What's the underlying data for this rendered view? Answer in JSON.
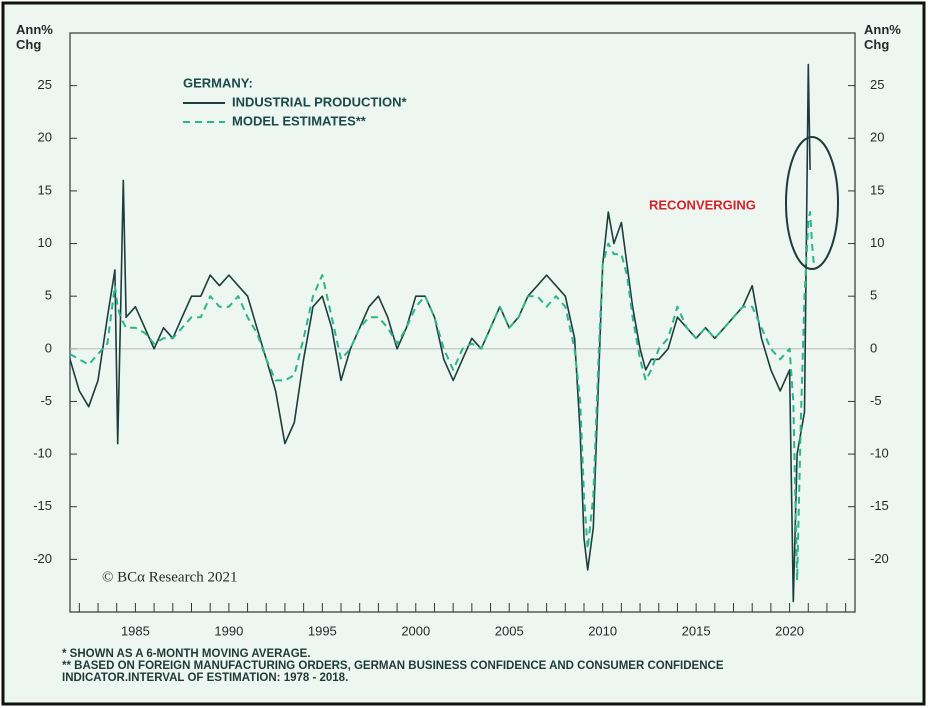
{
  "chart_data": {
    "type": "line",
    "ylabel": "Ann% Chg",
    "legend_title": "GERMANY:",
    "annotation": "RECONVERGING",
    "source": "© BCα Research 2021",
    "footnotes": [
      "* SHOWN AS A 6-MONTH MOVING AVERAGE.",
      "** BASED ON FOREIGN MANUFACTURING ORDERS, GERMAN BUSINESS CONFIDENCE AND CONSUMER CONFIDENCE INDICATOR.INTERVAL OF ESTIMATION: 1978 - 2018."
    ],
    "xlim": [
      1981.5,
      2023.5
    ],
    "ylim": [
      -25,
      30
    ],
    "xticks": [
      1985,
      1990,
      1995,
      2000,
      2005,
      2010,
      2015,
      2020
    ],
    "xminorticks": [
      1982,
      1983,
      1984,
      1985,
      1986,
      1987,
      1988,
      1989,
      1990,
      1991,
      1992,
      1993,
      1994,
      1995,
      1996,
      1997,
      1998,
      1999,
      2000,
      2001,
      2002,
      2003,
      2004,
      2005,
      2006,
      2007,
      2008,
      2009,
      2010,
      2011,
      2012,
      2013,
      2014,
      2015,
      2016,
      2017,
      2018,
      2019,
      2020,
      2021,
      2022,
      2023
    ],
    "yticks": [
      -20,
      -15,
      -10,
      -5,
      0,
      5,
      10,
      15,
      20,
      25
    ],
    "x": [
      1981.5,
      1982.0,
      1982.5,
      1983.0,
      1983.5,
      1983.9,
      1984.05,
      1984.2,
      1984.35,
      1984.5,
      1985.0,
      1985.5,
      1986.0,
      1986.5,
      1987.0,
      1987.5,
      1988.0,
      1988.5,
      1989.0,
      1989.5,
      1990.0,
      1990.5,
      1991.0,
      1991.5,
      1992.0,
      1992.5,
      1993.0,
      1993.5,
      1994.0,
      1994.5,
      1995.0,
      1995.5,
      1996.0,
      1996.5,
      1997.0,
      1997.5,
      1998.0,
      1998.5,
      1999.0,
      1999.5,
      2000.0,
      2000.5,
      2001.0,
      2001.5,
      2002.0,
      2002.5,
      2003.0,
      2003.5,
      2004.0,
      2004.5,
      2005.0,
      2005.5,
      2006.0,
      2006.5,
      2007.0,
      2007.5,
      2008.0,
      2008.5,
      2008.8,
      2009.0,
      2009.2,
      2009.5,
      2009.8,
      2010.0,
      2010.3,
      2010.6,
      2011.0,
      2011.3,
      2011.6,
      2012.0,
      2012.3,
      2012.6,
      2013.0,
      2013.5,
      2014.0,
      2014.5,
      2015.0,
      2015.5,
      2016.0,
      2016.5,
      2017.0,
      2017.5,
      2018.0,
      2018.5,
      2019.0,
      2019.5,
      2020.0,
      2020.2,
      2020.4,
      2020.6,
      2020.8,
      2021.0,
      2021.1,
      2021.2,
      2021.3
    ],
    "series": [
      {
        "name": "INDUSTRIAL PRODUCTION*",
        "color": "#1d3d3a",
        "dash": false,
        "values": [
          -1,
          -4,
          -5.5,
          -3,
          3,
          7.5,
          -9,
          3,
          16,
          3,
          4,
          2,
          0,
          2,
          1,
          3,
          5,
          5,
          7,
          6,
          7,
          6,
          5,
          2,
          -1,
          -4,
          -9,
          -7,
          -1,
          4,
          5,
          2,
          -3,
          0,
          2,
          4,
          5,
          3,
          0,
          2,
          5,
          5,
          3,
          -1,
          -3,
          -1,
          1,
          0,
          2,
          4,
          2,
          3,
          5,
          6,
          7,
          6,
          5,
          1,
          -8,
          -18,
          -21,
          -17,
          -2,
          8,
          13,
          10,
          12,
          8,
          4,
          0,
          -2,
          -1,
          -1,
          0,
          3,
          2,
          1,
          2,
          1,
          2,
          3,
          4,
          6,
          1,
          -2,
          -4,
          -2,
          -24,
          -10,
          -8,
          -6,
          27,
          17,
          null,
          null
        ]
      },
      {
        "name": "MODEL ESTIMATES**",
        "color": "#2bb58a",
        "dash": true,
        "values": [
          -0.5,
          -1,
          -1.5,
          -0.5,
          0.5,
          6,
          4,
          3,
          2.5,
          2,
          2,
          1.5,
          0.5,
          1,
          1,
          2,
          3,
          3,
          5,
          4,
          4,
          5,
          3,
          1.5,
          -1,
          -3,
          -3,
          -2.5,
          1,
          5,
          7,
          3,
          -1,
          0,
          2,
          3,
          3,
          2,
          0.5,
          2,
          4,
          5,
          3,
          0,
          -2,
          0,
          0.5,
          0,
          2,
          4,
          2,
          3,
          5,
          5,
          4,
          5,
          4,
          0,
          -5,
          -14,
          -19,
          -14,
          0,
          8,
          10,
          9,
          9,
          7,
          3,
          -1,
          -3,
          -2,
          0,
          1,
          4,
          2,
          1,
          2,
          1,
          2,
          3,
          4,
          4,
          2,
          0,
          -1,
          0,
          -5,
          -22,
          -7,
          5,
          12,
          13,
          10,
          8
        ]
      }
    ]
  }
}
